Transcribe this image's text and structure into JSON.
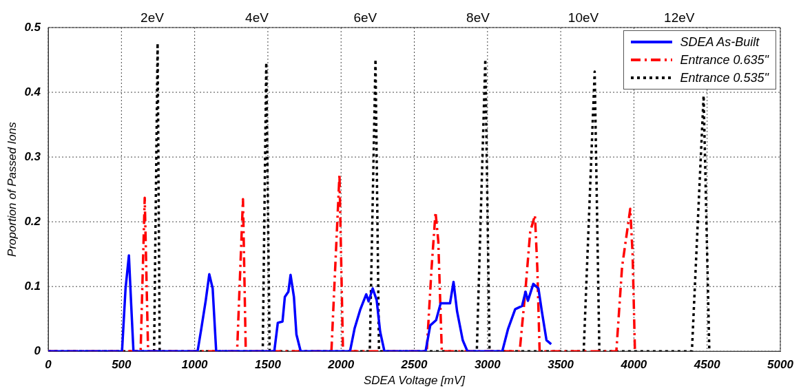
{
  "chart_data": {
    "type": "line",
    "xlabel": "SDEA Voltage [mV]",
    "ylabel": "Proportion of Passed Ions",
    "xlim": [
      0,
      5000
    ],
    "xticks": [
      0,
      500,
      1000,
      1500,
      2000,
      2500,
      3000,
      3500,
      4000,
      4500,
      5000
    ],
    "ylim": [
      0,
      0.5
    ],
    "yticks": [
      0,
      0.1,
      0.2,
      0.3,
      0.4,
      0.5
    ],
    "grid": true,
    "legend": "top right",
    "marker": "none",
    "annotations": [
      "2eV",
      "4eV",
      "6eV",
      "8eV",
      "10eV",
      "12eV"
    ],
    "series": [
      {
        "name": "SDEA As-Built",
        "color": "#0000ff",
        "line_style": "solid",
        "x": [
          0,
          504,
          528,
          551,
          567,
          582,
          1020,
          1044,
          1076,
          1100,
          1123,
          1147,
          1544,
          1568,
          1600,
          1616,
          1640,
          1655,
          1678,
          1695,
          1724,
          2061,
          2092,
          2132,
          2172,
          2188,
          2216,
          2243,
          2267,
          2296,
          2577,
          2609,
          2649,
          2680,
          2712,
          2744,
          2768,
          2792,
          2831,
          2863,
          3101,
          3141,
          3189,
          3236,
          3260,
          3276,
          3313,
          3348,
          3371,
          3403,
          3435
        ],
        "values": [
          0,
          0,
          0.097,
          0.148,
          0.07,
          0,
          0,
          0.033,
          0.079,
          0.119,
          0.097,
          0,
          0,
          0.044,
          0.046,
          0.084,
          0.092,
          0.118,
          0.084,
          0.026,
          0,
          0,
          0.035,
          0.065,
          0.088,
          0.077,
          0.097,
          0.079,
          0.03,
          0,
          0,
          0.04,
          0.048,
          0.074,
          0.074,
          0.074,
          0.107,
          0.062,
          0.017,
          0,
          0,
          0.035,
          0.065,
          0.07,
          0.092,
          0.078,
          0.104,
          0.097,
          0.062,
          0.017,
          0.011
        ]
      },
      {
        "name": "Entrance 0.635\"",
        "color": "#ff0000",
        "line_style": "dashed",
        "x": [
          0,
          631,
          659,
          682,
          1290,
          1330,
          1349,
          1934,
          1989,
          2013,
          2585,
          2617,
          2645,
          2664,
          2688,
          3220,
          3260,
          3292,
          3324,
          3340,
          3356,
          3880,
          3919,
          3975,
          3991,
          4007
        ],
        "values": [
          0,
          0,
          0.237,
          0,
          0,
          0.235,
          0,
          0,
          0.273,
          0,
          0,
          0.125,
          0.215,
          0.17,
          0,
          0,
          0.097,
          0.185,
          0.21,
          0.13,
          0,
          0,
          0.13,
          0.22,
          0.15,
          0
        ]
      },
      {
        "name": "Entrance 0.535\"",
        "color": "#000000",
        "line_style": "dotted",
        "x": [
          0,
          723,
          747,
          761,
          1465,
          1489,
          1512,
          2196,
          2235,
          2259,
          2927,
          2985,
          3014,
          3657,
          3732,
          3764,
          4396,
          4476,
          4515
        ],
        "values": [
          0,
          0,
          0.476,
          0,
          0,
          0.446,
          0,
          0,
          0.451,
          0,
          0,
          0.451,
          0,
          0,
          0.432,
          0,
          0,
          0.395,
          0
        ]
      }
    ]
  }
}
